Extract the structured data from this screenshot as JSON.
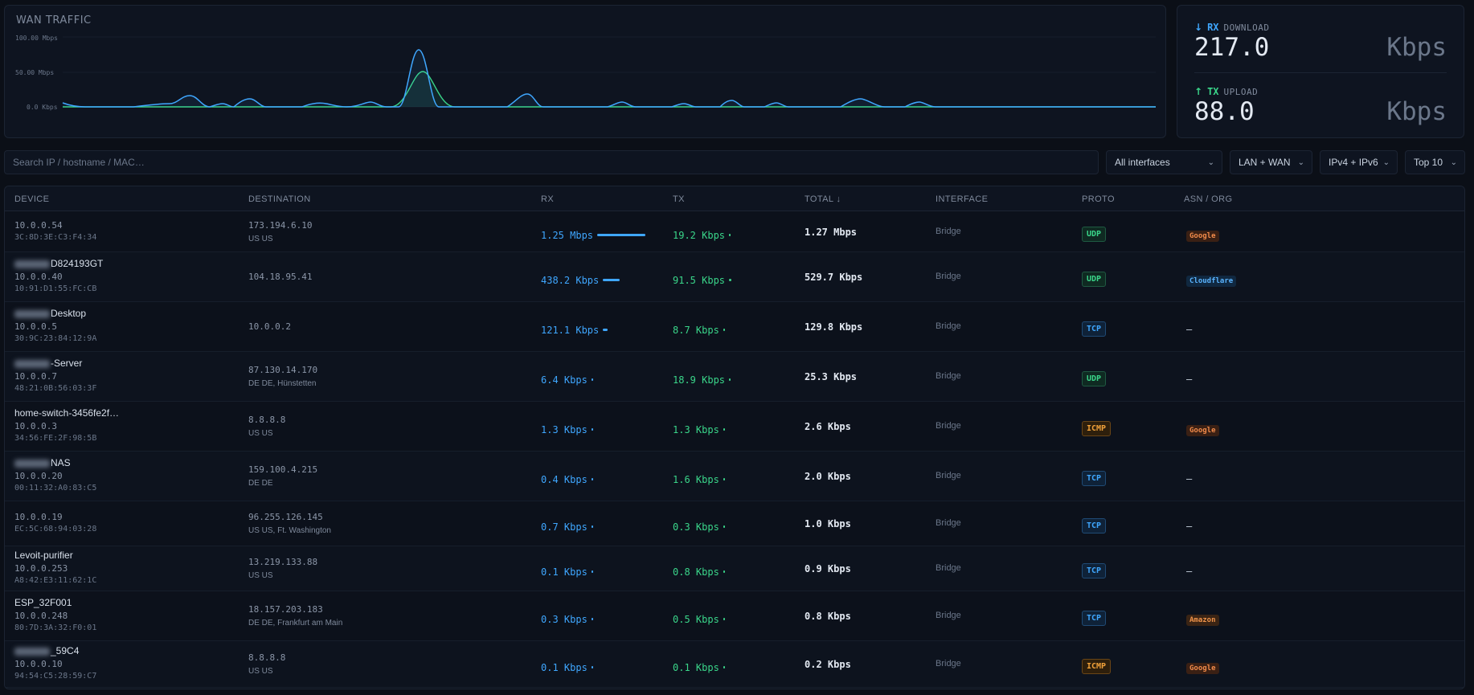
{
  "wan_traffic": {
    "title": "WAN TRAFFIC",
    "y_ticks": [
      "100.00 Mbps",
      "50.00 Mbps",
      "0.0 Kbps"
    ],
    "colors": {
      "rx": "#3fa7ff",
      "tx": "#3ad68a"
    }
  },
  "rates": {
    "rx": {
      "arrow": "↓",
      "tag": "RX",
      "label": "DOWNLOAD",
      "value": "217.0",
      "unit": "Kbps"
    },
    "tx": {
      "arrow": "↑",
      "tag": "TX",
      "label": "UPLOAD",
      "value": "88.0",
      "unit": "Kbps"
    }
  },
  "filters": {
    "search_placeholder": "Search IP / hostname / MAC…",
    "interfaces": "All interfaces",
    "scope": "LAN + WAN",
    "ip_version": "IPv4 + IPv6",
    "top": "Top 10"
  },
  "table": {
    "headers": {
      "device": "DEVICE",
      "destination": "DESTINATION",
      "rx": "RX",
      "tx": "TX",
      "total": "TOTAL ↓",
      "interface": "INTERFACE",
      "proto": "PROTO",
      "asn": "ASN / ORG"
    },
    "rows": [
      {
        "name": "",
        "name_suffix": "",
        "blurred": false,
        "ip": "10.0.0.54",
        "mac": "3C:8D:3E:C3:F4:34",
        "dst_ip": "173.194.6.10",
        "dst_geo": "US US",
        "rx": "1.25 Mbps",
        "rx_frac": 1.0,
        "tx": "19.2 Kbps",
        "tx_frac": 0.02,
        "total": "1.27 Mbps",
        "iface": "Bridge",
        "proto": "UDP",
        "asn": "Google"
      },
      {
        "name": "",
        "name_suffix": "D824193GT",
        "blurred": true,
        "ip": "10.0.0.40",
        "mac": "10:91:D1:55:FC:CB",
        "dst_ip": "104.18.95.41",
        "dst_geo": "",
        "rx": "438.2 Kbps",
        "rx_frac": 0.35,
        "tx": "91.5 Kbps",
        "tx_frac": 0.07,
        "total": "529.7 Kbps",
        "iface": "Bridge",
        "proto": "UDP",
        "asn": "Cloudflare"
      },
      {
        "name": "",
        "name_suffix": "Desktop",
        "blurred": true,
        "ip": "10.0.0.5",
        "mac": "30:9C:23:84:12:9A",
        "dst_ip": "10.0.0.2",
        "dst_geo": "",
        "rx": "121.1 Kbps",
        "rx_frac": 0.1,
        "tx": "8.7 Kbps",
        "tx_frac": 0.01,
        "total": "129.8 Kbps",
        "iface": "Bridge",
        "proto": "TCP",
        "asn": "—"
      },
      {
        "name": "",
        "name_suffix": "-Server",
        "blurred": true,
        "ip": "10.0.0.7",
        "mac": "48:21:0B:56:03:3F",
        "dst_ip": "87.130.14.170",
        "dst_geo": "DE DE, Hünstetten",
        "rx": "6.4 Kbps",
        "rx_frac": 0.01,
        "tx": "18.9 Kbps",
        "tx_frac": 0.02,
        "total": "25.3 Kbps",
        "iface": "Bridge",
        "proto": "UDP",
        "asn": "—"
      },
      {
        "name": "home-switch-3456fe2f…",
        "name_suffix": "",
        "blurred": false,
        "ip": "10.0.0.3",
        "mac": "34:56:FE:2F:98:5B",
        "dst_ip": "8.8.8.8",
        "dst_geo": "US US",
        "rx": "1.3 Kbps",
        "rx_frac": 0.01,
        "tx": "1.3 Kbps",
        "tx_frac": 0.01,
        "total": "2.6 Kbps",
        "iface": "Bridge",
        "proto": "ICMP",
        "asn": "Google"
      },
      {
        "name": "",
        "name_suffix": "NAS",
        "blurred": true,
        "ip": "10.0.0.20",
        "mac": "00:11:32:A0:83:C5",
        "dst_ip": "159.100.4.215",
        "dst_geo": "DE DE",
        "rx": "0.4 Kbps",
        "rx_frac": 0.01,
        "tx": "1.6 Kbps",
        "tx_frac": 0.01,
        "total": "2.0 Kbps",
        "iface": "Bridge",
        "proto": "TCP",
        "asn": "—"
      },
      {
        "name": "",
        "name_suffix": "",
        "blurred": false,
        "ip": "10.0.0.19",
        "mac": "EC:5C:68:94:03:28",
        "dst_ip": "96.255.126.145",
        "dst_geo": "US US, Ft. Washington",
        "rx": "0.7 Kbps",
        "rx_frac": 0.01,
        "tx": "0.3 Kbps",
        "tx_frac": 0.01,
        "total": "1.0 Kbps",
        "iface": "Bridge",
        "proto": "TCP",
        "asn": "—"
      },
      {
        "name": "Levoit-purifier",
        "name_suffix": "",
        "blurred": false,
        "ip": "10.0.0.253",
        "mac": "A8:42:E3:11:62:1C",
        "dst_ip": "13.219.133.88",
        "dst_geo": "US US",
        "rx": "0.1 Kbps",
        "rx_frac": 0.01,
        "tx": "0.8 Kbps",
        "tx_frac": 0.01,
        "total": "0.9 Kbps",
        "iface": "Bridge",
        "proto": "TCP",
        "asn": "—"
      },
      {
        "name": "ESP_32F001",
        "name_suffix": "",
        "blurred": false,
        "ip": "10.0.0.248",
        "mac": "80:7D:3A:32:F0:01",
        "dst_ip": "18.157.203.183",
        "dst_geo": "DE DE, Frankfurt am Main",
        "rx": "0.3 Kbps",
        "rx_frac": 0.01,
        "tx": "0.5 Kbps",
        "tx_frac": 0.01,
        "total": "0.8 Kbps",
        "iface": "Bridge",
        "proto": "TCP",
        "asn": "Amazon"
      },
      {
        "name": "",
        "name_suffix": "_59C4",
        "blurred": true,
        "ip": "10.0.0.10",
        "mac": "94:54:C5:28:59:C7",
        "dst_ip": "8.8.8.8",
        "dst_geo": "US US",
        "rx": "0.1 Kbps",
        "rx_frac": 0.01,
        "tx": "0.1 Kbps",
        "tx_frac": 0.01,
        "total": "0.2 Kbps",
        "iface": "Bridge",
        "proto": "ICMP",
        "asn": "Google"
      }
    ]
  }
}
